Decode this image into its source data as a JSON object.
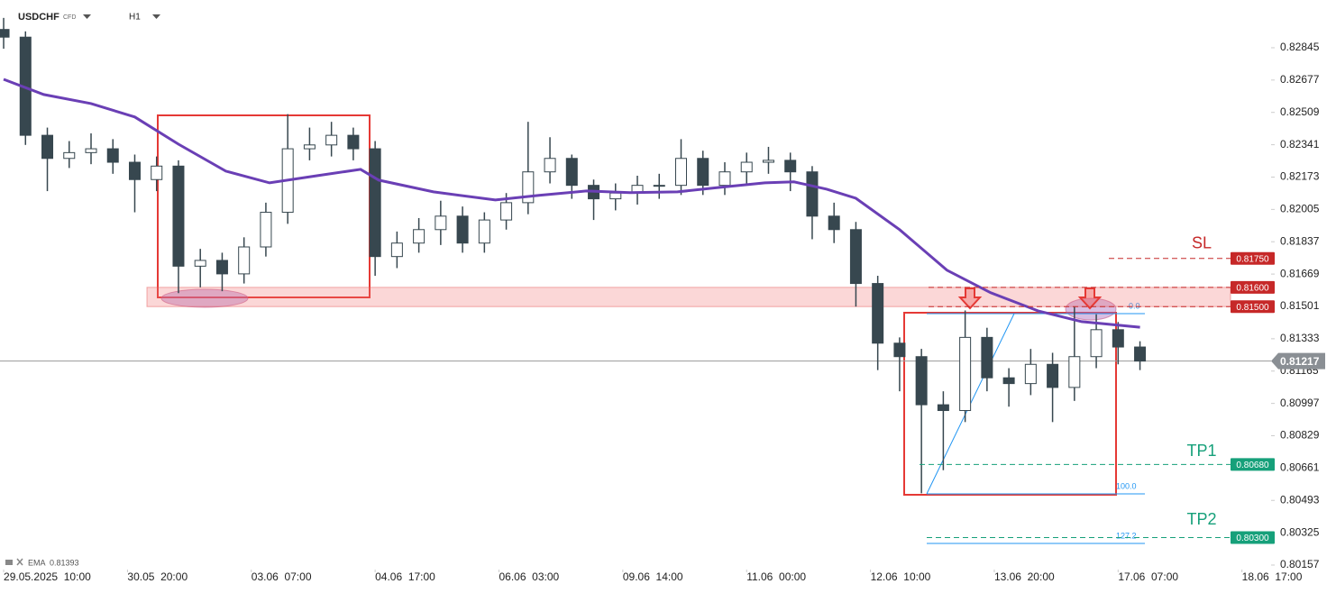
{
  "chart_data": {
    "type": "candlestick",
    "symbol": "USDCHF",
    "instrument_type": "CFD",
    "timeframe": "H1",
    "xlim": [
      -1,
      348
    ],
    "xticks": [
      {
        "value": 0,
        "label": "29.05.2025  10:00"
      },
      {
        "value": 34,
        "label": "30.05  20:00"
      },
      {
        "value": 68,
        "label": "03.06  07:00"
      },
      {
        "value": 102,
        "label": "04.06  17:00"
      },
      {
        "value": 136,
        "label": "06.06  03:00"
      },
      {
        "value": 170,
        "label": "09.06  14:00"
      },
      {
        "value": 204,
        "label": "11.06  00:00"
      },
      {
        "value": 238,
        "label": "12.06  10:00"
      },
      {
        "value": 272,
        "label": "13.06  20:00"
      },
      {
        "value": 306,
        "label": "17.06  07:00"
      },
      {
        "value": 340,
        "label": "18.06  17:00"
      }
    ],
    "ylim": [
      0.80143,
      0.83093
    ],
    "yticks": [
      0.82845,
      0.82677,
      0.82509,
      0.82341,
      0.82173,
      0.82005,
      0.81837,
      0.81669,
      0.81501,
      0.81333,
      0.81165,
      0.80997,
      0.80829,
      0.80661,
      0.80493,
      0.80325,
      0.80157
    ],
    "x": [
      0,
      6,
      12,
      18,
      24,
      30,
      36,
      42,
      48,
      54,
      60,
      66,
      72,
      78,
      84,
      90,
      96,
      102,
      108,
      114,
      120,
      126,
      132,
      138,
      144,
      150,
      156,
      162,
      168,
      174,
      180,
      186,
      192,
      198,
      204,
      210,
      216,
      222,
      228,
      234,
      240,
      246,
      252,
      258,
      264,
      270,
      276,
      282,
      288,
      294,
      300,
      306,
      312
    ],
    "open": [
      0.8294,
      0.829,
      0.8239,
      0.8227,
      0.823,
      0.8232,
      0.8225,
      0.8216,
      0.8223,
      0.8171,
      0.8174,
      0.8167,
      0.8181,
      0.8199,
      0.8232,
      0.8234,
      0.8239,
      0.8232,
      0.8176,
      0.8183,
      0.819,
      0.8197,
      0.8183,
      0.8195,
      0.8204,
      0.822,
      0.8227,
      0.8213,
      0.8206,
      0.8209,
      0.8213,
      0.8213,
      0.8227,
      0.8213,
      0.822,
      0.8225,
      0.8226,
      0.822,
      0.8197,
      0.819,
      0.8162,
      0.8131,
      0.8124,
      0.8099,
      0.8096,
      0.8134,
      0.8113,
      0.811,
      0.812,
      0.8108,
      0.8124,
      0.8138,
      0.8129
    ],
    "high": [
      0.83,
      0.8293,
      0.8243,
      0.8236,
      0.824,
      0.8237,
      0.8229,
      0.8228,
      0.8226,
      0.818,
      0.8178,
      0.8186,
      0.8204,
      0.825,
      0.8243,
      0.8246,
      0.8243,
      0.8236,
      0.8189,
      0.8196,
      0.8205,
      0.8202,
      0.8199,
      0.8209,
      0.8246,
      0.8238,
      0.8229,
      0.8216,
      0.8214,
      0.8218,
      0.8219,
      0.8237,
      0.8231,
      0.8225,
      0.823,
      0.8233,
      0.823,
      0.8223,
      0.8204,
      0.8194,
      0.8166,
      0.8134,
      0.8128,
      0.8106,
      0.8148,
      0.8139,
      0.8118,
      0.8128,
      0.8126,
      0.815,
      0.8146,
      0.8142,
      0.8132
    ],
    "low": [
      0.8284,
      0.8234,
      0.821,
      0.8222,
      0.8224,
      0.8219,
      0.8199,
      0.821,
      0.8157,
      0.816,
      0.8158,
      0.8162,
      0.8176,
      0.8193,
      0.8226,
      0.8228,
      0.8226,
      0.8166,
      0.817,
      0.8178,
      0.8182,
      0.8178,
      0.8178,
      0.819,
      0.8198,
      0.8214,
      0.8206,
      0.8195,
      0.82,
      0.8203,
      0.8206,
      0.8208,
      0.8208,
      0.8208,
      0.8214,
      0.8219,
      0.821,
      0.8185,
      0.8183,
      0.815,
      0.8117,
      0.8106,
      0.8053,
      0.8065,
      0.809,
      0.8106,
      0.8098,
      0.8104,
      0.809,
      0.8101,
      0.8118,
      0.812,
      0.8117
    ],
    "close": [
      0.829,
      0.8239,
      0.8227,
      0.823,
      0.8232,
      0.8225,
      0.8216,
      0.8223,
      0.8171,
      0.8174,
      0.8167,
      0.8181,
      0.8199,
      0.8232,
      0.8234,
      0.8239,
      0.8232,
      0.8176,
      0.8183,
      0.819,
      0.8197,
      0.8183,
      0.8195,
      0.8204,
      0.822,
      0.8227,
      0.8213,
      0.8206,
      0.8209,
      0.8213,
      0.8213,
      0.8227,
      0.8213,
      0.822,
      0.8225,
      0.8226,
      0.822,
      0.8197,
      0.819,
      0.8162,
      0.8131,
      0.8124,
      0.8099,
      0.8096,
      0.8134,
      0.8113,
      0.811,
      0.812,
      0.8108,
      0.8124,
      0.8138,
      0.8129,
      0.81217
    ],
    "ema": {
      "name": "EMA",
      "color": "#6a3fb5",
      "legend_value": 0.81393,
      "x": [
        0,
        11,
        24,
        36,
        48,
        61,
        73,
        86,
        98,
        103,
        118,
        135,
        147,
        160,
        172,
        185,
        197,
        209,
        217,
        226,
        234,
        246,
        259,
        271,
        284,
        296,
        312
      ],
      "values": [
        0.82681,
        0.82602,
        0.82555,
        0.82485,
        0.82344,
        0.82204,
        0.82143,
        0.8218,
        0.82213,
        0.82157,
        0.82096,
        0.82054,
        0.82078,
        0.82101,
        0.82092,
        0.82096,
        0.8212,
        0.82143,
        0.82148,
        0.8211,
        0.82063,
        0.819,
        0.81689,
        0.81572,
        0.81478,
        0.81422,
        0.81393
      ]
    },
    "zone": [
      0.815,
      0.816
    ],
    "last_price": 0.81217,
    "levels": [
      {
        "name": "SL",
        "value": 0.8175,
        "label": "0.81750",
        "color": "#c62828"
      },
      {
        "value": 0.816,
        "label": "0.81600",
        "color": "#c62828"
      },
      {
        "value": 0.815,
        "label": "0.81500",
        "color": "#c62828"
      },
      {
        "name": "TP1",
        "value": 0.8068,
        "label": "0.80680",
        "color": "#16a07a"
      },
      {
        "name": "TP2",
        "value": 0.803,
        "label": "0.80300",
        "color": "#16a07a"
      }
    ],
    "fib_labels": [
      "0.0",
      "100.0",
      "127.2"
    ]
  }
}
